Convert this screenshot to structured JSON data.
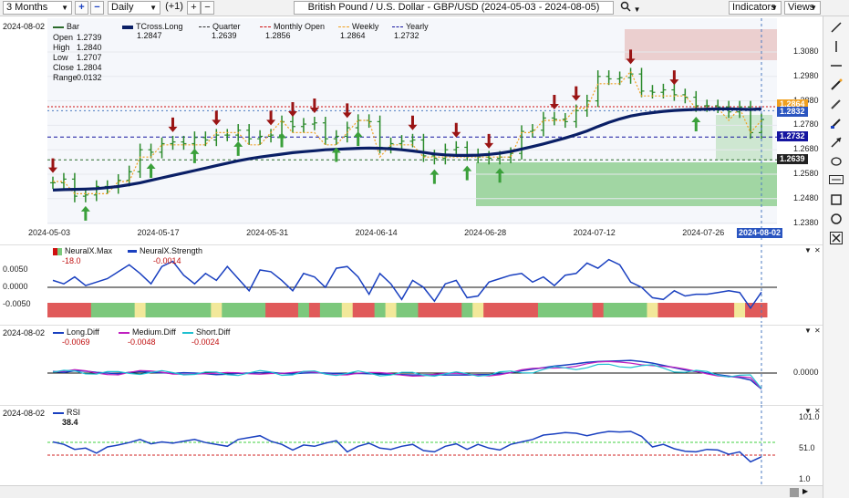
{
  "toolbar": {
    "range": "3 Months",
    "plus": "+",
    "minus": "−",
    "period": "Daily",
    "offset": "(+1)",
    "title": "British Pound / U.S. Dollar - GBP/USD (2024-05-03 - 2024-08-05)",
    "search_icon": "search-icon",
    "indicators": "Indicators",
    "views": "Views"
  },
  "main_pane": {
    "date": "2024-08-02",
    "legend": [
      {
        "label": "Bar",
        "color": "#2a6a2a"
      },
      {
        "label": "TCross.Long",
        "color": "#0a1f66"
      },
      {
        "label": "Quarter",
        "color": "#333333"
      },
      {
        "label": "Monthly Open",
        "color": "#d01010"
      },
      {
        "label": "Weekly",
        "color": "#f0a020"
      },
      {
        "label": "Yearly",
        "color": "#1515a0"
      }
    ],
    "legend_values": [
      "1.2847",
      "1.2639",
      "1.2856",
      "1.2864",
      "1.2732"
    ],
    "ohlc": {
      "open_label": "Open",
      "open": "1.2739",
      "high_label": "High",
      "high": "1.2840",
      "low_label": "Low",
      "low": "1.2707",
      "close_label": "Close",
      "close": "1.2804",
      "range_label": "Range",
      "range": "0.0132"
    },
    "y_ticks": [
      "1.3080",
      "1.2980",
      "1.2880",
      "1.2780",
      "1.2680",
      "1.2580",
      "1.2480",
      "1.2380"
    ],
    "price_tags": [
      {
        "value": "1.2864",
        "color": "#f0a020"
      },
      {
        "value": "1.2832",
        "color": "#2a55c0"
      },
      {
        "value": "1.2732",
        "color": "#1515a0"
      },
      {
        "value": "1.2639",
        "color": "#222222"
      }
    ],
    "x_ticks": [
      "2024-05-03",
      "2024-05-17",
      "2024-05-31",
      "2024-06-14",
      "2024-06-28",
      "2024-07-12",
      "2024-07-26"
    ],
    "x_current": "2024-08-02"
  },
  "neurax_pane": {
    "legend": [
      {
        "label": "NeuralX.Max",
        "value": "-18.0",
        "color": "#d01010"
      },
      {
        "label": "NeuralX.Strength",
        "value": "-0.0014",
        "color": "#1a40c0"
      }
    ],
    "y_ticks": [
      "0.0050",
      "0.0000",
      "-0.0050"
    ]
  },
  "diff_pane": {
    "date": "2024-08-02",
    "legend": [
      {
        "label": "Long.Diff",
        "value": "-0.0069",
        "color": "#1a40c0"
      },
      {
        "label": "Medium.Diff",
        "value": "-0.0048",
        "color": "#c020c0"
      },
      {
        "label": "Short.Diff",
        "value": "-0.0024",
        "color": "#20c0d0"
      }
    ],
    "y_ticks": [
      "0.0000"
    ]
  },
  "rsi_pane": {
    "date": "2024-08-02",
    "legend": [
      {
        "label": "RSI",
        "value": "38.4",
        "color": "#1a40c0"
      }
    ],
    "y_ticks": [
      "101.0",
      "51.0",
      "1.0"
    ]
  },
  "right_tools": [
    "line-tool-icon",
    "vertical-line-icon",
    "horizontal-line-icon",
    "pen-icon",
    "pencil-icon",
    "brush-icon",
    "arrow-icon",
    "ellipse-icon",
    "text-tool-icon",
    "rectangle-icon",
    "circle-icon",
    "delete-icon"
  ],
  "chart_data": {
    "type": "line",
    "title": "British Pound / U.S. Dollar - GBP/USD (2024-05-03 - 2024-08-05)",
    "x": [
      "2024-05-03",
      "2024-05-06",
      "2024-05-07",
      "2024-05-08",
      "2024-05-09",
      "2024-05-10",
      "2024-05-13",
      "2024-05-14",
      "2024-05-15",
      "2024-05-16",
      "2024-05-17",
      "2024-05-20",
      "2024-05-21",
      "2024-05-22",
      "2024-05-23",
      "2024-05-24",
      "2024-05-27",
      "2024-05-28",
      "2024-05-29",
      "2024-05-30",
      "2024-05-31",
      "2024-06-03",
      "2024-06-04",
      "2024-06-05",
      "2024-06-06",
      "2024-06-07",
      "2024-06-10",
      "2024-06-11",
      "2024-06-12",
      "2024-06-13",
      "2024-06-14",
      "2024-06-17",
      "2024-06-18",
      "2024-06-19",
      "2024-06-20",
      "2024-06-21",
      "2024-06-24",
      "2024-06-25",
      "2024-06-26",
      "2024-06-27",
      "2024-06-28",
      "2024-07-01",
      "2024-07-02",
      "2024-07-03",
      "2024-07-04",
      "2024-07-05",
      "2024-07-08",
      "2024-07-09",
      "2024-07-10",
      "2024-07-11",
      "2024-07-12",
      "2024-07-15",
      "2024-07-16",
      "2024-07-17",
      "2024-07-18",
      "2024-07-19",
      "2024-07-22",
      "2024-07-23",
      "2024-07-24",
      "2024-07-25",
      "2024-07-26",
      "2024-07-29",
      "2024-07-30",
      "2024-07-31",
      "2024-08-01",
      "2024-08-02"
    ],
    "series": [
      {
        "name": "Bar",
        "values": [
          1.2545,
          1.256,
          1.249,
          1.2495,
          1.253,
          1.2525,
          1.2555,
          1.259,
          1.268,
          1.267,
          1.2705,
          1.2712,
          1.2705,
          1.273,
          1.272,
          1.274,
          1.274,
          1.276,
          1.2725,
          1.2735,
          1.274,
          1.2795,
          1.2775,
          1.2785,
          1.279,
          1.2725,
          1.2735,
          1.277,
          1.28,
          1.2795,
          1.269,
          1.2705,
          1.2715,
          1.272,
          1.2655,
          1.2645,
          1.268,
          1.269,
          1.266,
          1.265,
          1.2645,
          1.265,
          1.2665,
          1.2755,
          1.276,
          1.281,
          1.2805,
          1.2795,
          1.284,
          1.288,
          1.298,
          1.297,
          1.2975,
          1.299,
          1.292,
          1.2915,
          1.2925,
          1.2905,
          1.2895,
          1.286,
          1.286,
          1.2855,
          1.2835,
          1.2855,
          1.275,
          1.2804
        ]
      },
      {
        "name": "TCross.Long",
        "values": [
          1.2515,
          1.2517,
          1.2518,
          1.2519,
          1.2521,
          1.2525,
          1.253,
          1.2537,
          1.2545,
          1.2555,
          1.2565,
          1.2575,
          1.2585,
          1.2595,
          1.2605,
          1.2615,
          1.2625,
          1.2635,
          1.2643,
          1.265,
          1.2656,
          1.2662,
          1.2668,
          1.2672,
          1.2676,
          1.268,
          1.2682,
          1.2684,
          1.2686,
          1.2687,
          1.2686,
          1.2684,
          1.268,
          1.2675,
          1.2669,
          1.2663,
          1.2659,
          1.2657,
          1.2657,
          1.2658,
          1.2661,
          1.2666,
          1.2673,
          1.2683,
          1.2693,
          1.2704,
          1.2716,
          1.2728,
          1.2742,
          1.2757,
          1.2775,
          1.2792,
          1.2806,
          1.2818,
          1.2826,
          1.2832,
          1.2837,
          1.2841,
          1.2843,
          1.2845,
          1.2846,
          1.2847,
          1.2847,
          1.2846,
          1.2845,
          1.2847
        ]
      }
    ],
    "y_ticks": [
      "1.3080",
      "1.2980",
      "1.2880",
      "1.2780",
      "1.2680",
      "1.2580",
      "1.2480",
      "1.2380"
    ]
  }
}
